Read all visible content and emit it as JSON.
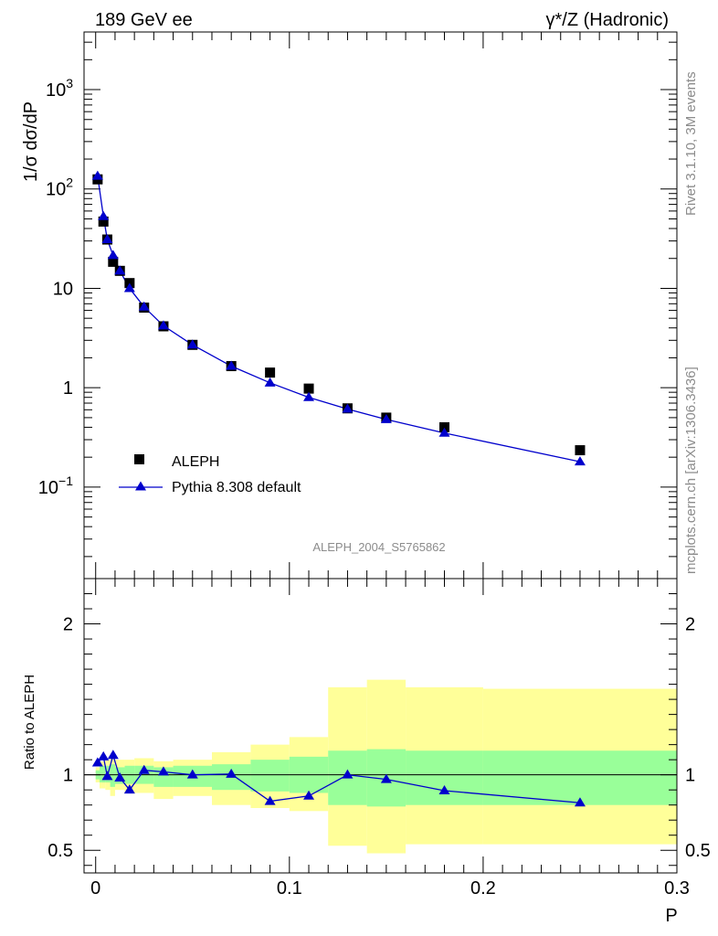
{
  "chart_data": {
    "type": "scatter",
    "title_left": "189 GeV ee",
    "title_right": "γ*/Z (Hadronic)",
    "ylabel_top": "1/σ  dσ/dP",
    "ylabel_ratio": "Ratio to ALEPH",
    "xlabel": "P",
    "analysis_id": "ALEPH_2004_S5765862",
    "side_label_top": "Rivet 3.1.10,  3M events",
    "side_label_bottom": "mcplots.cern.ch [arXiv:1306.3436]",
    "x_ticks": [
      {
        "v": 0,
        "label": "0"
      },
      {
        "v": 0.1,
        "label": "0.1"
      },
      {
        "v": 0.2,
        "label": "0.2"
      },
      {
        "v": 0.3,
        "label": "0.3"
      }
    ],
    "xlim": [
      -0.006,
      0.3
    ],
    "main_y_log": true,
    "main_ylim": [
      0.012,
      3800
    ],
    "main_y_ticks": [
      {
        "v": 0.1,
        "base": "10",
        "exp": "−1"
      },
      {
        "v": 1,
        "base": "1",
        "exp": ""
      },
      {
        "v": 10,
        "base": "10",
        "exp": ""
      },
      {
        "v": 100,
        "base": "10",
        "exp": "2"
      },
      {
        "v": 1000,
        "base": "10",
        "exp": "3"
      }
    ],
    "ratio_ylim": [
      0.35,
      2.3
    ],
    "ratio_y_ticks": [
      {
        "v": 0.5,
        "label": "0.5"
      },
      {
        "v": 1,
        "label": "1"
      },
      {
        "v": 2,
        "label": "2"
      }
    ],
    "legend": [
      {
        "name": "ALEPH",
        "marker": "square",
        "color": "#000000"
      },
      {
        "name": "Pythia 8.308 default",
        "marker": "triangle",
        "color": "#0000cc"
      }
    ],
    "colors": {
      "band_inner": "#99ff99",
      "band_outer": "#ffff99",
      "mc": "#0000cc",
      "data": "#000000"
    },
    "data": [
      {
        "x": 0.001,
        "y": 125
      },
      {
        "x": 0.004,
        "y": 47
      },
      {
        "x": 0.006,
        "y": 31
      },
      {
        "x": 0.009,
        "y": 18.5
      },
      {
        "x": 0.0125,
        "y": 15
      },
      {
        "x": 0.0175,
        "y": 11.3
      },
      {
        "x": 0.025,
        "y": 6.4
      },
      {
        "x": 0.035,
        "y": 4.15
      },
      {
        "x": 0.05,
        "y": 2.7
      },
      {
        "x": 0.07,
        "y": 1.65
      },
      {
        "x": 0.09,
        "y": 1.42
      },
      {
        "x": 0.11,
        "y": 0.98
      },
      {
        "x": 0.13,
        "y": 0.62
      },
      {
        "x": 0.15,
        "y": 0.5
      },
      {
        "x": 0.18,
        "y": 0.4
      },
      {
        "x": 0.25,
        "y": 0.235
      }
    ],
    "mc": [
      {
        "x": 0.001,
        "y": 135
      },
      {
        "x": 0.004,
        "y": 53
      },
      {
        "x": 0.006,
        "y": 31
      },
      {
        "x": 0.009,
        "y": 21.5
      },
      {
        "x": 0.0125,
        "y": 15
      },
      {
        "x": 0.0175,
        "y": 10
      },
      {
        "x": 0.025,
        "y": 6.5
      },
      {
        "x": 0.035,
        "y": 4.2
      },
      {
        "x": 0.05,
        "y": 2.7
      },
      {
        "x": 0.07,
        "y": 1.65
      },
      {
        "x": 0.09,
        "y": 1.12
      },
      {
        "x": 0.11,
        "y": 0.8
      },
      {
        "x": 0.13,
        "y": 0.61
      },
      {
        "x": 0.15,
        "y": 0.48
      },
      {
        "x": 0.18,
        "y": 0.35
      },
      {
        "x": 0.25,
        "y": 0.18
      }
    ],
    "ratio": [
      {
        "x": 0.001,
        "y": 1.08
      },
      {
        "x": 0.004,
        "y": 1.12
      },
      {
        "x": 0.006,
        "y": 0.99
      },
      {
        "x": 0.009,
        "y": 1.13
      },
      {
        "x": 0.0125,
        "y": 0.98
      },
      {
        "x": 0.0175,
        "y": 0.9
      },
      {
        "x": 0.025,
        "y": 1.03
      },
      {
        "x": 0.035,
        "y": 1.02
      },
      {
        "x": 0.05,
        "y": 1.0
      },
      {
        "x": 0.07,
        "y": 1.005
      },
      {
        "x": 0.09,
        "y": 0.825
      },
      {
        "x": 0.11,
        "y": 0.86
      },
      {
        "x": 0.13,
        "y": 1.0
      },
      {
        "x": 0.15,
        "y": 0.97
      },
      {
        "x": 0.18,
        "y": 0.895
      },
      {
        "x": 0.25,
        "y": 0.815
      }
    ],
    "bands": [
      {
        "x0": 0.0,
        "x1": 0.002,
        "in_lo": 0.97,
        "in_hi": 1.03,
        "out_lo": 0.95,
        "out_hi": 1.05
      },
      {
        "x0": 0.002,
        "x1": 0.005,
        "in_lo": 0.95,
        "in_hi": 1.06,
        "out_lo": 0.91,
        "out_hi": 1.09
      },
      {
        "x0": 0.005,
        "x1": 0.0075,
        "in_lo": 0.95,
        "in_hi": 1.06,
        "out_lo": 0.9,
        "out_hi": 1.1
      },
      {
        "x0": 0.0075,
        "x1": 0.01,
        "in_lo": 0.92,
        "in_hi": 1.07,
        "out_lo": 0.86,
        "out_hi": 1.12
      },
      {
        "x0": 0.01,
        "x1": 0.015,
        "in_lo": 0.94,
        "in_hi": 1.05,
        "out_lo": 0.9,
        "out_hi": 1.1
      },
      {
        "x0": 0.015,
        "x1": 0.02,
        "in_lo": 0.94,
        "in_hi": 1.06,
        "out_lo": 0.88,
        "out_hi": 1.1
      },
      {
        "x0": 0.02,
        "x1": 0.03,
        "in_lo": 0.94,
        "in_hi": 1.06,
        "out_lo": 0.88,
        "out_hi": 1.11
      },
      {
        "x0": 0.03,
        "x1": 0.04,
        "in_lo": 0.92,
        "in_hi": 1.05,
        "out_lo": 0.84,
        "out_hi": 1.09
      },
      {
        "x0": 0.04,
        "x1": 0.06,
        "in_lo": 0.92,
        "in_hi": 1.06,
        "out_lo": 0.86,
        "out_hi": 1.1
      },
      {
        "x0": 0.06,
        "x1": 0.08,
        "in_lo": 0.9,
        "in_hi": 1.07,
        "out_lo": 0.8,
        "out_hi": 1.15
      },
      {
        "x0": 0.08,
        "x1": 0.1,
        "in_lo": 0.89,
        "in_hi": 1.1,
        "out_lo": 0.78,
        "out_hi": 1.2
      },
      {
        "x0": 0.1,
        "x1": 0.12,
        "in_lo": 0.88,
        "in_hi": 1.12,
        "out_lo": 0.76,
        "out_hi": 1.25
      },
      {
        "x0": 0.12,
        "x1": 0.14,
        "in_lo": 0.8,
        "in_hi": 1.16,
        "out_lo": 0.53,
        "out_hi": 1.58
      },
      {
        "x0": 0.14,
        "x1": 0.16,
        "in_lo": 0.79,
        "in_hi": 1.17,
        "out_lo": 0.48,
        "out_hi": 1.63
      },
      {
        "x0": 0.16,
        "x1": 0.2,
        "in_lo": 0.8,
        "in_hi": 1.16,
        "out_lo": 0.54,
        "out_hi": 1.58
      },
      {
        "x0": 0.2,
        "x1": 0.3,
        "in_lo": 0.8,
        "in_hi": 1.16,
        "out_lo": 0.54,
        "out_hi": 1.57
      }
    ]
  }
}
